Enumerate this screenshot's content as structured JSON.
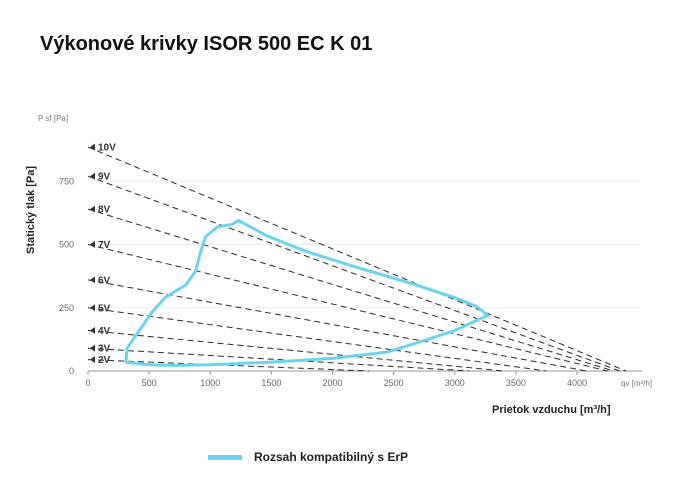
{
  "chart_data": {
    "type": "line",
    "title": "Výkonové krivky ISOR 500 EC K 01",
    "xlabel": "Prietok vzduchu [m³/h]",
    "ylabel": "Statický tlak [Pa]",
    "x_corner_label": "qv [m³/h]",
    "y_corner_label": "P sf [Pa]",
    "xlim": [
      0,
      4450
    ],
    "ylim": [
      0,
      1000
    ],
    "x_ticks": [
      0,
      500,
      1000,
      1500,
      2000,
      2500,
      3000,
      3500,
      4000
    ],
    "y_ticks": [
      0,
      250,
      500,
      750
    ],
    "voltage_curves": [
      {
        "label": "10V",
        "points": [
          [
            0,
            885
          ],
          [
            4400,
            0
          ]
        ]
      },
      {
        "label": "9V",
        "points": [
          [
            0,
            770
          ],
          [
            4350,
            0
          ]
        ]
      },
      {
        "label": "8V",
        "points": [
          [
            0,
            640
          ],
          [
            4300,
            0
          ]
        ]
      },
      {
        "label": "7V",
        "points": [
          [
            0,
            500
          ],
          [
            4250,
            0
          ]
        ]
      },
      {
        "label": "6V",
        "points": [
          [
            0,
            360
          ],
          [
            4080,
            0
          ]
        ]
      },
      {
        "label": "5V",
        "points": [
          [
            0,
            250
          ],
          [
            3750,
            0
          ]
        ]
      },
      {
        "label": "4V",
        "points": [
          [
            0,
            160
          ],
          [
            3400,
            0
          ]
        ]
      },
      {
        "label": "3V",
        "points": [
          [
            0,
            90
          ],
          [
            3120,
            0
          ]
        ]
      },
      {
        "label": "2V",
        "points": [
          [
            0,
            45
          ],
          [
            2300,
            0
          ]
        ]
      }
    ],
    "series": [
      {
        "name": "Rozsah kompatibilný s ErP",
        "color": "#6ad4ee",
        "closed": true,
        "points": [
          [
            1230,
            595
          ],
          [
            1460,
            535
          ],
          [
            1800,
            470
          ],
          [
            2200,
            410
          ],
          [
            2650,
            345
          ],
          [
            3000,
            290
          ],
          [
            3180,
            255
          ],
          [
            3270,
            220
          ],
          [
            3180,
            200
          ],
          [
            3000,
            160
          ],
          [
            2750,
            120
          ],
          [
            2450,
            75
          ],
          [
            2000,
            50
          ],
          [
            1500,
            35
          ],
          [
            1000,
            25
          ],
          [
            700,
            22
          ],
          [
            500,
            25
          ],
          [
            310,
            35
          ],
          [
            320,
            90
          ],
          [
            420,
            160
          ],
          [
            520,
            230
          ],
          [
            630,
            290
          ],
          [
            800,
            340
          ],
          [
            880,
            395
          ],
          [
            920,
            470
          ],
          [
            960,
            530
          ],
          [
            1060,
            570
          ],
          [
            1180,
            580
          ],
          [
            1230,
            595
          ]
        ]
      }
    ]
  },
  "legend": {
    "label": "Rozsah kompatibilný s ErP",
    "color": "#6ad4ee"
  }
}
